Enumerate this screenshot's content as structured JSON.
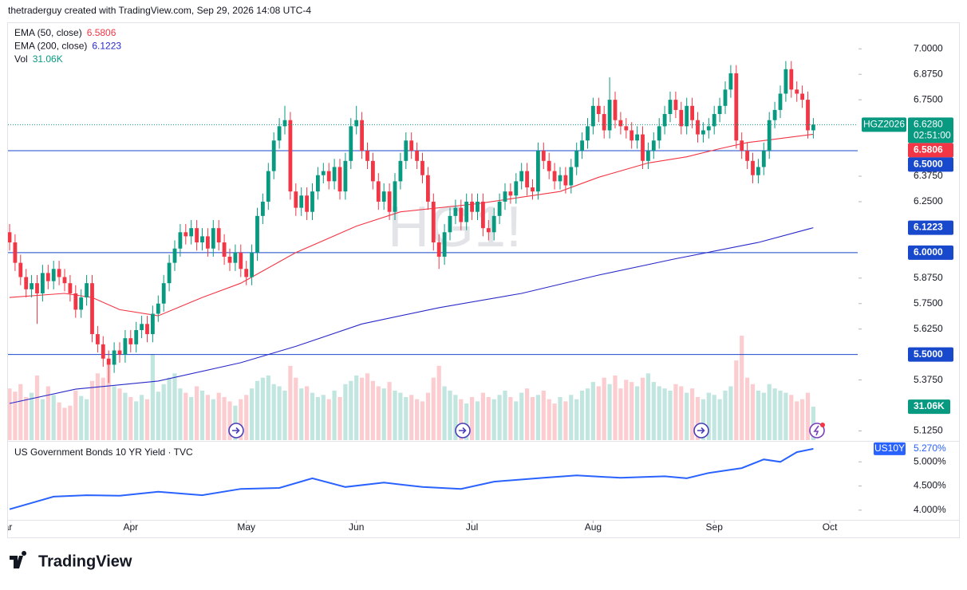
{
  "header": "thetraderguy created with TradingView.com, Sep 29, 2026 14:08 UTC-4",
  "footer": "TradingView",
  "chart_data": [
    {
      "type": "candlestick",
      "symbol": "HGZ2026",
      "watermark": "HG1!",
      "up_color": "#089981",
      "down_color": "#f23645",
      "open": [
        6.1,
        6.05,
        5.95,
        5.88,
        5.82,
        5.85,
        5.8,
        5.9,
        5.86,
        5.92,
        5.88,
        5.85,
        5.8,
        5.72,
        5.78,
        5.85,
        5.6,
        5.55,
        5.48,
        5.45,
        5.52,
        5.5,
        5.58,
        5.55,
        5.62,
        5.65,
        5.6,
        5.7,
        5.75,
        5.85,
        5.95,
        6.02,
        6.1,
        6.08,
        6.12,
        6.05,
        6.08,
        6.02,
        6.12,
        6.05,
        5.98,
        5.95,
        6.0,
        5.92,
        5.88,
        6.0,
        6.18,
        6.25,
        6.4,
        6.55,
        6.62,
        6.65,
        6.3,
        6.22,
        6.28,
        6.2,
        6.3,
        6.38,
        6.4,
        6.35,
        6.42,
        6.3,
        6.45,
        6.62,
        6.65,
        6.5,
        6.45,
        6.35,
        6.25,
        6.3,
        6.2,
        6.35,
        6.45,
        6.55,
        6.5,
        6.45,
        6.38,
        6.25,
        6.05,
        5.98,
        6.1,
        6.18,
        6.22,
        6.15,
        6.25,
        6.2,
        6.25,
        6.12,
        6.1,
        6.18,
        6.25,
        6.3,
        6.28,
        6.35,
        6.4,
        6.32,
        6.3,
        6.5,
        6.45,
        6.4,
        6.35,
        6.38,
        6.33,
        6.42,
        6.5,
        6.55,
        6.62,
        6.72,
        6.68,
        6.6,
        6.75,
        6.65,
        6.62,
        6.6,
        6.55,
        6.58,
        6.45,
        6.5,
        6.55,
        6.62,
        6.68,
        6.75,
        6.7,
        6.62,
        6.72,
        6.65,
        6.58,
        6.6,
        6.62,
        6.68,
        6.72,
        6.8,
        6.88,
        6.55,
        6.5,
        6.45,
        6.38,
        6.42,
        6.5,
        6.65,
        6.7,
        6.78,
        6.9,
        6.8,
        6.78,
        6.75,
        6.6
      ],
      "high": [
        6.14,
        6.09,
        5.99,
        5.92,
        5.89,
        5.89,
        5.94,
        5.94,
        5.96,
        5.96,
        5.92,
        5.89,
        5.84,
        5.82,
        5.89,
        5.89,
        5.64,
        5.59,
        5.52,
        5.56,
        5.56,
        5.62,
        5.62,
        5.66,
        5.69,
        5.69,
        5.74,
        5.79,
        5.89,
        5.99,
        6.06,
        6.14,
        6.14,
        6.16,
        6.16,
        6.12,
        6.12,
        6.16,
        6.16,
        6.09,
        6.02,
        6.04,
        6.04,
        5.96,
        6.04,
        6.22,
        6.29,
        6.44,
        6.59,
        6.66,
        6.72,
        6.69,
        6.34,
        6.32,
        6.32,
        6.34,
        6.42,
        6.44,
        6.44,
        6.46,
        6.46,
        6.49,
        6.66,
        6.72,
        6.69,
        6.54,
        6.49,
        6.39,
        6.34,
        6.34,
        6.39,
        6.49,
        6.59,
        6.59,
        6.54,
        6.49,
        6.42,
        6.29,
        6.09,
        6.14,
        6.22,
        6.26,
        6.26,
        6.29,
        6.29,
        6.29,
        6.29,
        6.16,
        6.22,
        6.29,
        6.34,
        6.34,
        6.39,
        6.44,
        6.44,
        6.36,
        6.54,
        6.54,
        6.49,
        6.44,
        6.42,
        6.42,
        6.46,
        6.54,
        6.59,
        6.66,
        6.76,
        6.76,
        6.72,
        6.86,
        6.79,
        6.69,
        6.66,
        6.64,
        6.62,
        6.62,
        6.54,
        6.59,
        6.66,
        6.72,
        6.79,
        6.79,
        6.74,
        6.76,
        6.76,
        6.69,
        6.64,
        6.66,
        6.72,
        6.76,
        6.84,
        6.92,
        6.92,
        6.59,
        6.54,
        6.49,
        6.46,
        6.54,
        6.69,
        6.74,
        6.82,
        6.94,
        6.94,
        6.84,
        6.82,
        6.79,
        6.66
      ],
      "low": [
        6.01,
        5.91,
        5.84,
        5.78,
        5.78,
        5.65,
        5.76,
        5.82,
        5.82,
        5.84,
        5.81,
        5.76,
        5.68,
        5.68,
        5.74,
        5.56,
        5.51,
        5.44,
        5.36,
        5.41,
        5.46,
        5.46,
        5.51,
        5.51,
        5.58,
        5.56,
        5.56,
        5.66,
        5.71,
        5.81,
        5.91,
        5.98,
        6.04,
        6.04,
        6.01,
        6.01,
        5.98,
        5.98,
        6.01,
        5.94,
        5.91,
        5.91,
        5.88,
        5.84,
        5.84,
        5.96,
        6.14,
        6.21,
        6.36,
        6.51,
        6.58,
        6.26,
        6.18,
        6.18,
        6.16,
        6.16,
        6.26,
        6.34,
        6.31,
        6.31,
        6.26,
        6.26,
        6.41,
        6.58,
        6.46,
        6.41,
        6.31,
        6.21,
        6.21,
        6.16,
        6.16,
        6.31,
        6.41,
        6.46,
        6.41,
        6.34,
        6.21,
        6.01,
        5.92,
        5.94,
        6.06,
        6.14,
        6.11,
        6.11,
        6.16,
        6.16,
        6.08,
        6.06,
        6.06,
        6.14,
        6.21,
        6.24,
        6.24,
        6.31,
        6.28,
        6.26,
        6.26,
        6.41,
        6.36,
        6.31,
        6.31,
        6.29,
        6.29,
        6.38,
        6.46,
        6.51,
        6.58,
        6.64,
        6.56,
        6.56,
        6.61,
        6.58,
        6.56,
        6.51,
        6.51,
        6.41,
        6.41,
        6.46,
        6.51,
        6.58,
        6.64,
        6.66,
        6.58,
        6.58,
        6.61,
        6.54,
        6.54,
        6.56,
        6.58,
        6.64,
        6.68,
        6.76,
        6.51,
        6.46,
        6.41,
        6.34,
        6.34,
        6.38,
        6.46,
        6.61,
        6.66,
        6.74,
        6.76,
        6.74,
        6.71,
        6.56,
        6.56
      ],
      "close": [
        6.05,
        5.95,
        5.88,
        5.82,
        5.85,
        5.8,
        5.9,
        5.86,
        5.92,
        5.88,
        5.85,
        5.8,
        5.72,
        5.78,
        5.85,
        5.6,
        5.55,
        5.48,
        5.45,
        5.52,
        5.5,
        5.58,
        5.55,
        5.62,
        5.65,
        5.6,
        5.7,
        5.75,
        5.85,
        5.95,
        6.02,
        6.1,
        6.08,
        6.12,
        6.05,
        6.08,
        6.02,
        6.12,
        6.05,
        5.98,
        5.95,
        6.0,
        5.92,
        5.88,
        6.0,
        6.18,
        6.25,
        6.4,
        6.55,
        6.62,
        6.65,
        6.3,
        6.22,
        6.28,
        6.2,
        6.3,
        6.38,
        6.4,
        6.35,
        6.42,
        6.3,
        6.45,
        6.62,
        6.65,
        6.5,
        6.45,
        6.35,
        6.25,
        6.3,
        6.2,
        6.35,
        6.45,
        6.55,
        6.5,
        6.45,
        6.38,
        6.25,
        6.05,
        5.98,
        6.1,
        6.18,
        6.22,
        6.15,
        6.25,
        6.2,
        6.25,
        6.12,
        6.1,
        6.18,
        6.25,
        6.3,
        6.28,
        6.35,
        6.4,
        6.32,
        6.3,
        6.5,
        6.45,
        6.4,
        6.35,
        6.38,
        6.33,
        6.42,
        6.5,
        6.55,
        6.62,
        6.72,
        6.68,
        6.6,
        6.75,
        6.65,
        6.62,
        6.6,
        6.55,
        6.58,
        6.45,
        6.5,
        6.55,
        6.62,
        6.68,
        6.75,
        6.7,
        6.62,
        6.72,
        6.65,
        6.58,
        6.6,
        6.62,
        6.68,
        6.72,
        6.8,
        6.88,
        6.55,
        6.5,
        6.45,
        6.38,
        6.42,
        6.5,
        6.65,
        6.7,
        6.78,
        6.9,
        6.8,
        6.78,
        6.75,
        6.6,
        6.628
      ],
      "last_price": {
        "value": 6.628,
        "label": "6.6280"
      },
      "countdown": "02:51:00",
      "ylim": [
        5.08,
        7.13
      ],
      "yticks": [
        {
          "value": 5.125,
          "label": "5.1250"
        },
        {
          "value": 5.375,
          "label": "5.3750"
        },
        {
          "value": 5.625,
          "label": "5.6250"
        },
        {
          "value": 5.75,
          "label": "5.7500"
        },
        {
          "value": 5.875,
          "label": "5.8750"
        },
        {
          "value": 6.25,
          "label": "6.2500"
        },
        {
          "value": 6.375,
          "label": "6.3750"
        },
        {
          "value": 6.75,
          "label": "6.7500"
        },
        {
          "value": 6.875,
          "label": "6.8750"
        },
        {
          "value": 7.0,
          "label": "7.0000"
        }
      ],
      "xticks": [
        {
          "value": -1,
          "label": "Mar"
        },
        {
          "value": 22,
          "label": "Apr"
        },
        {
          "value": 43,
          "label": "May"
        },
        {
          "value": 63,
          "label": "Jun"
        },
        {
          "value": 84,
          "label": "Jul"
        },
        {
          "value": 106,
          "label": "Aug"
        },
        {
          "value": 128,
          "label": "Sep"
        },
        {
          "value": 149,
          "label": "Oct"
        }
      ],
      "levels": [
        {
          "value": 6.5,
          "label": "6.5000"
        },
        {
          "value": 6.0,
          "label": "6.0000"
        },
        {
          "value": 5.5,
          "label": "5.5000"
        }
      ],
      "level_color": "#1848cc",
      "series": [
        {
          "name": "EMA (50, close)",
          "color": "#f23645",
          "x": [
            0,
            10,
            15,
            20,
            27,
            35,
            42,
            52,
            63,
            71,
            85,
            100,
            107,
            116,
            123,
            129,
            134,
            137,
            146
          ],
          "values": [
            5.78,
            5.8,
            5.78,
            5.72,
            5.69,
            5.78,
            5.85,
            6.0,
            6.13,
            6.2,
            6.24,
            6.3,
            6.37,
            6.44,
            6.47,
            6.51,
            6.54,
            6.55,
            6.5806
          ],
          "last": 6.5806
        },
        {
          "name": "EMA (200, close)",
          "color": "#2929c9",
          "x": [
            0,
            12,
            27,
            42,
            52,
            64,
            78,
            93,
            107,
            121,
            136,
            146
          ],
          "values": [
            5.26,
            5.33,
            5.37,
            5.46,
            5.54,
            5.65,
            5.73,
            5.8,
            5.89,
            5.97,
            6.05,
            6.1223
          ],
          "last": 6.1223
        }
      ],
      "volume": {
        "name": "Vol",
        "values": [
          48,
          45,
          52,
          40,
          44,
          60,
          38,
          50,
          42,
          35,
          30,
          32,
          46,
          41,
          38,
          55,
          62,
          58,
          70,
          50,
          48,
          44,
          40,
          36,
          42,
          38,
          80,
          45,
          52,
          58,
          62,
          48,
          44,
          40,
          50,
          46,
          42,
          38,
          44,
          40,
          36,
          32,
          38,
          42,
          48,
          55,
          58,
          60,
          52,
          50,
          46,
          69,
          58,
          48,
          50,
          44,
          40,
          42,
          38,
          46,
          40,
          52,
          55,
          60,
          58,
          62,
          55,
          50,
          48,
          54,
          46,
          44,
          40,
          42,
          38,
          36,
          44,
          58,
          69,
          50,
          46,
          42,
          38,
          34,
          40,
          36,
          44,
          40,
          38,
          42,
          46,
          40,
          36,
          44,
          48,
          40,
          42,
          46,
          38,
          34,
          40,
          36,
          42,
          38,
          46,
          48,
          54,
          50,
          58,
          52,
          60,
          48,
          56,
          54,
          50,
          58,
          62,
          54,
          50,
          48,
          46,
          52,
          50,
          44,
          48,
          40,
          38,
          44,
          42,
          38,
          46,
          50,
          74,
          97,
          58,
          52,
          46,
          44,
          52,
          48,
          46,
          44,
          42,
          36,
          38,
          44,
          31.06
        ],
        "last": {
          "value": 31.06,
          "label": "31.06K"
        }
      }
    },
    {
      "type": "line",
      "title": "US Government Bonds 10 YR Yield · TVC",
      "name": "US10Y",
      "color": "#2962ff",
      "x": [
        0,
        4,
        8,
        14,
        20,
        27,
        35,
        42,
        49,
        55,
        61,
        68,
        75,
        82,
        88,
        97,
        103,
        111,
        119,
        123,
        127,
        133,
        137,
        140,
        143,
        146
      ],
      "values": [
        4.02,
        4.15,
        4.28,
        4.31,
        4.3,
        4.38,
        4.31,
        4.44,
        4.46,
        4.66,
        4.48,
        4.57,
        4.48,
        4.44,
        4.59,
        4.67,
        4.72,
        4.67,
        4.7,
        4.66,
        4.77,
        4.87,
        5.05,
        5.0,
        5.2,
        5.27
      ],
      "last": {
        "value": 5.27,
        "label": "5.270%"
      },
      "ylim": [
        3.8,
        5.4
      ],
      "yticks": [
        {
          "value": 4.0,
          "label": "4.000%"
        },
        {
          "value": 4.5,
          "label": "4.500%"
        },
        {
          "value": 5.0,
          "label": "5.000%"
        }
      ]
    }
  ]
}
